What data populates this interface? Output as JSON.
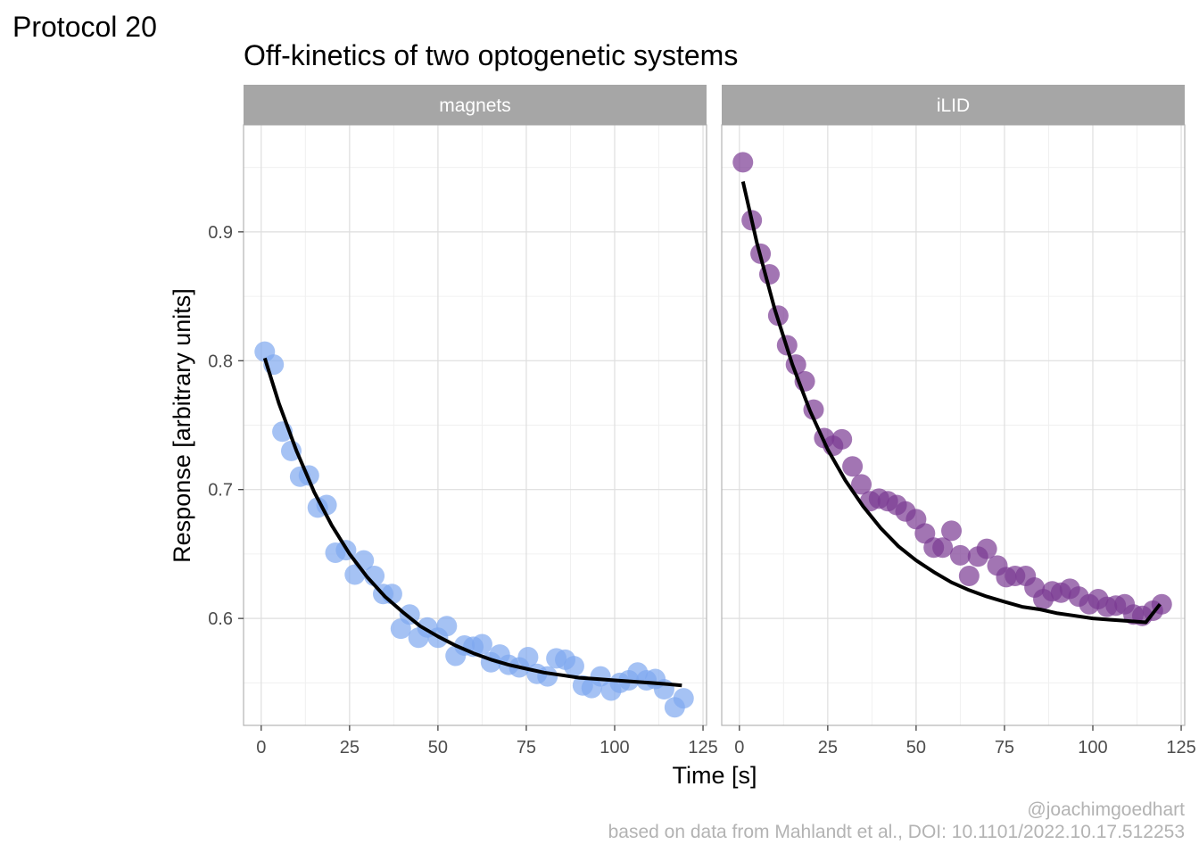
{
  "figure": {
    "tag": "Protocol 20",
    "title": "Off-kinetics of two optogenetic systems",
    "caption_line1": "@joachimgoedhart",
    "caption_line2": "based on data from Mahlandt et al., DOI: 10.1101/2022.10.17.512253"
  },
  "chart_data": {
    "type": "scatter",
    "title": "Off-kinetics of two optogenetic systems",
    "xlabel": "Time [s]",
    "ylabel": "Response [arbitrary units]",
    "xlim": [
      -5,
      126
    ],
    "ylim": [
      0.517,
      0.983
    ],
    "x_ticks": [
      0,
      25,
      50,
      75,
      100,
      125
    ],
    "y_ticks": [
      0.6,
      0.7,
      0.8,
      0.9
    ],
    "grid": true,
    "legend": "none",
    "panels": [
      {
        "name": "magnets",
        "point_color": "#7fa8f0",
        "points_x": [
          1,
          3.5,
          6,
          8.5,
          11,
          13.5,
          16,
          18.5,
          21,
          24,
          26.5,
          29,
          32,
          34.5,
          37,
          39.5,
          42,
          44.5,
          47,
          50,
          52.5,
          55,
          57.5,
          60,
          62.5,
          65,
          67.5,
          70,
          73,
          75.5,
          78,
          81,
          83.5,
          86,
          88.5,
          91,
          93.5,
          96,
          99,
          101.5,
          104,
          106.5,
          109,
          111.5,
          114,
          117,
          119.5
        ],
        "points_y": [
          0.807,
          0.797,
          0.745,
          0.73,
          0.71,
          0.711,
          0.686,
          0.688,
          0.651,
          0.653,
          0.634,
          0.645,
          0.633,
          0.619,
          0.619,
          0.592,
          0.603,
          0.585,
          0.593,
          0.585,
          0.594,
          0.571,
          0.579,
          0.578,
          0.58,
          0.566,
          0.572,
          0.564,
          0.562,
          0.57,
          0.557,
          0.555,
          0.569,
          0.568,
          0.563,
          0.548,
          0.546,
          0.555,
          0.544,
          0.55,
          0.552,
          0.558,
          0.552,
          0.553,
          0.545,
          0.531,
          0.538
        ],
        "fit_x": [
          1,
          5,
          10,
          15,
          20,
          25,
          30,
          35,
          40,
          45,
          50,
          55,
          60,
          65,
          70,
          75,
          80,
          85,
          90,
          95,
          100,
          105,
          110,
          115,
          119
        ],
        "fit_y": [
          0.802,
          0.767,
          0.73,
          0.698,
          0.672,
          0.65,
          0.632,
          0.617,
          0.605,
          0.594,
          0.586,
          0.579,
          0.573,
          0.568,
          0.564,
          0.561,
          0.558,
          0.556,
          0.554,
          0.553,
          0.552,
          0.551,
          0.55,
          0.549,
          0.548
        ]
      },
      {
        "name": "iLID",
        "point_color": "#7b3a93",
        "points_x": [
          1,
          3.5,
          6,
          8.5,
          11,
          13.5,
          16,
          18.5,
          21,
          24,
          26.5,
          29,
          32,
          34.5,
          37,
          39.5,
          42,
          44.5,
          47,
          50,
          52.5,
          55,
          57.5,
          60,
          62.5,
          65,
          67.5,
          70,
          73,
          75.5,
          78,
          81,
          83.5,
          86,
          88.5,
          91,
          93.5,
          96,
          99,
          101.5,
          104,
          106.5,
          109,
          111.5,
          114,
          117,
          119.5
        ],
        "points_y": [
          0.954,
          0.909,
          0.883,
          0.867,
          0.835,
          0.812,
          0.797,
          0.784,
          0.762,
          0.74,
          0.734,
          0.739,
          0.718,
          0.704,
          0.691,
          0.693,
          0.691,
          0.688,
          0.683,
          0.677,
          0.666,
          0.655,
          0.655,
          0.668,
          0.649,
          0.633,
          0.648,
          0.654,
          0.641,
          0.632,
          0.633,
          0.633,
          0.624,
          0.615,
          0.621,
          0.62,
          0.623,
          0.617,
          0.611,
          0.615,
          0.609,
          0.61,
          0.611,
          0.603,
          0.602,
          0.606,
          0.611
        ],
        "fit_x": [
          1,
          5,
          10,
          15,
          20,
          25,
          30,
          35,
          40,
          45,
          50,
          55,
          60,
          65,
          70,
          75,
          80,
          85,
          90,
          95,
          100,
          105,
          110,
          115,
          119
        ],
        "fit_y": [
          0.939,
          0.891,
          0.84,
          0.797,
          0.761,
          0.731,
          0.707,
          0.687,
          0.67,
          0.656,
          0.645,
          0.636,
          0.628,
          0.622,
          0.617,
          0.613,
          0.609,
          0.607,
          0.604,
          0.602,
          0.6,
          0.599,
          0.598,
          0.597,
          0.611
        ]
      }
    ]
  }
}
